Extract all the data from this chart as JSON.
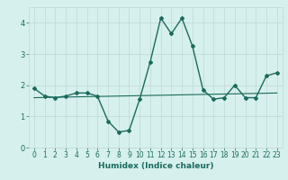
{
  "x": [
    0,
    1,
    2,
    3,
    4,
    5,
    6,
    7,
    8,
    9,
    10,
    11,
    12,
    13,
    14,
    15,
    16,
    17,
    18,
    19,
    20,
    21,
    22,
    23
  ],
  "y": [
    1.9,
    1.65,
    1.6,
    1.65,
    1.75,
    1.75,
    1.65,
    0.85,
    0.5,
    0.55,
    1.55,
    2.75,
    4.15,
    3.65,
    4.15,
    3.25,
    1.85,
    1.55,
    1.6,
    2.0,
    1.6,
    1.6,
    2.3,
    2.4
  ],
  "trend_x": [
    0,
    23
  ],
  "trend_y": [
    1.6,
    1.75
  ],
  "line_color": "#1a6b5c",
  "bg_color": "#d6f0ed",
  "grid_color": "#c0d8d4",
  "xlabel": "Humidex (Indice chaleur)",
  "ylim": [
    0,
    4.5
  ],
  "xlim": [
    -0.5,
    23.5
  ],
  "yticks": [
    0,
    1,
    2,
    3,
    4
  ],
  "xticks": [
    0,
    1,
    2,
    3,
    4,
    5,
    6,
    7,
    8,
    9,
    10,
    11,
    12,
    13,
    14,
    15,
    16,
    17,
    18,
    19,
    20,
    21,
    22,
    23
  ],
  "marker": "D",
  "markersize": 2.0,
  "linewidth": 1.0,
  "font_color": "#1a6b5c",
  "tick_fontsize": 5.5,
  "xlabel_fontsize": 6.5
}
